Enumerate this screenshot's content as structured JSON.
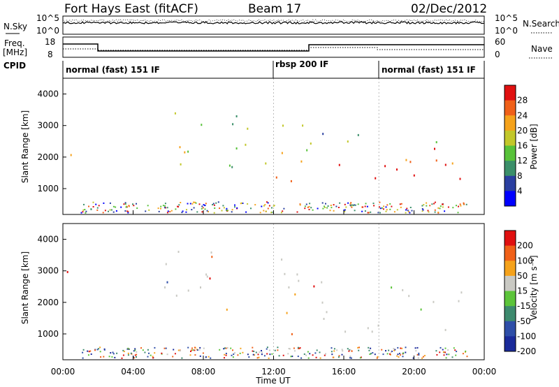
{
  "header": {
    "title": "Fort Hays East (fitACF)",
    "beam": "Beam 17",
    "date": "02/Dec/2012"
  },
  "status_panels": {
    "nsky_label": "N.Sky",
    "nsky_ticks": [
      "10^5",
      "10^0"
    ],
    "nsearch_label": "N.Search",
    "nsearch_ticks": [
      "10^5",
      "10^0"
    ],
    "freq_label": "Freq.",
    "freq_unit": "[MHz]",
    "freq_ticks": [
      "18",
      "8"
    ],
    "nave_label": "Nave",
    "nave_ticks": [
      "60",
      "0"
    ],
    "cpid_label": "CPID",
    "cpid_modes": [
      {
        "label": "normal (fast) 151 IF",
        "start_hour": 0
      },
      {
        "label": "rbsp 200 IF",
        "start_hour": 12
      },
      {
        "label": "normal (fast) 151 IF",
        "start_hour": 18
      }
    ]
  },
  "x_axis": {
    "label": "Time UT",
    "ticks": [
      "00:00",
      "04:00",
      "08:00",
      "12:00",
      "16:00",
      "20:00",
      "00:00"
    ],
    "range_hours": [
      0,
      24
    ]
  },
  "chart_data": [
    {
      "type": "heatmap",
      "panel": "power",
      "ylabel": "Slant Range [km]",
      "yticks": [
        1000,
        2000,
        3000,
        4000
      ],
      "ylim": [
        180,
        4500
      ],
      "colorbar_label": "Power [dB]",
      "colorbar_ticks": [
        4,
        8,
        12,
        16,
        20,
        24,
        28
      ],
      "colorbar_colors": [
        "#0000ff",
        "#2a3fa0",
        "#3b8f6a",
        "#58c23a",
        "#c2c72a",
        "#f5a21b",
        "#f06018",
        "#e01010"
      ],
      "clusters": [
        {
          "t0": 0.1,
          "t1": 0.6,
          "r0": 1700,
          "r1": 3000,
          "level": 0.6
        },
        {
          "t0": 5.5,
          "t1": 10.5,
          "r0": 1300,
          "r1": 3700,
          "level": 0.45
        },
        {
          "t0": 11.5,
          "t1": 14,
          "r0": 1000,
          "r1": 3900,
          "level": 0.7
        },
        {
          "t0": 14,
          "t1": 23,
          "r0": 1100,
          "r1": 2300,
          "level": 0.9
        },
        {
          "t0": 14,
          "t1": 23,
          "r0": 2300,
          "r1": 2800,
          "level": 0.45
        }
      ]
    },
    {
      "type": "heatmap",
      "panel": "velocity",
      "ylabel": "Slant Range [km]",
      "yticks": [
        1000,
        2000,
        3000,
        4000
      ],
      "ylim": [
        180,
        4500
      ],
      "colorbar_label": "Velocity [m s⁻¹]",
      "colorbar_ticks": [
        200,
        100,
        50,
        15,
        -15,
        -50,
        -100,
        -200
      ],
      "colorbar_colors": [
        "#1a2a9a",
        "#2e4ea8",
        "#3d8a6e",
        "#5cc43a",
        "#c9c9c3",
        "#f5a21b",
        "#f06018",
        "#e01010"
      ],
      "clusters": [
        {
          "t0": 0.1,
          "t1": 0.6,
          "r0": 1700,
          "r1": 3000,
          "level": 0.45
        },
        {
          "t0": 5.5,
          "t1": 10.5,
          "r0": 1300,
          "r1": 3700,
          "level": 0.45
        },
        {
          "t0": 11.5,
          "t1": 14,
          "r0": 1000,
          "r1": 3900,
          "level": 0.3
        },
        {
          "t0": 14,
          "t1": 23,
          "r0": 1100,
          "r1": 2800,
          "level": 0.45
        }
      ]
    }
  ]
}
